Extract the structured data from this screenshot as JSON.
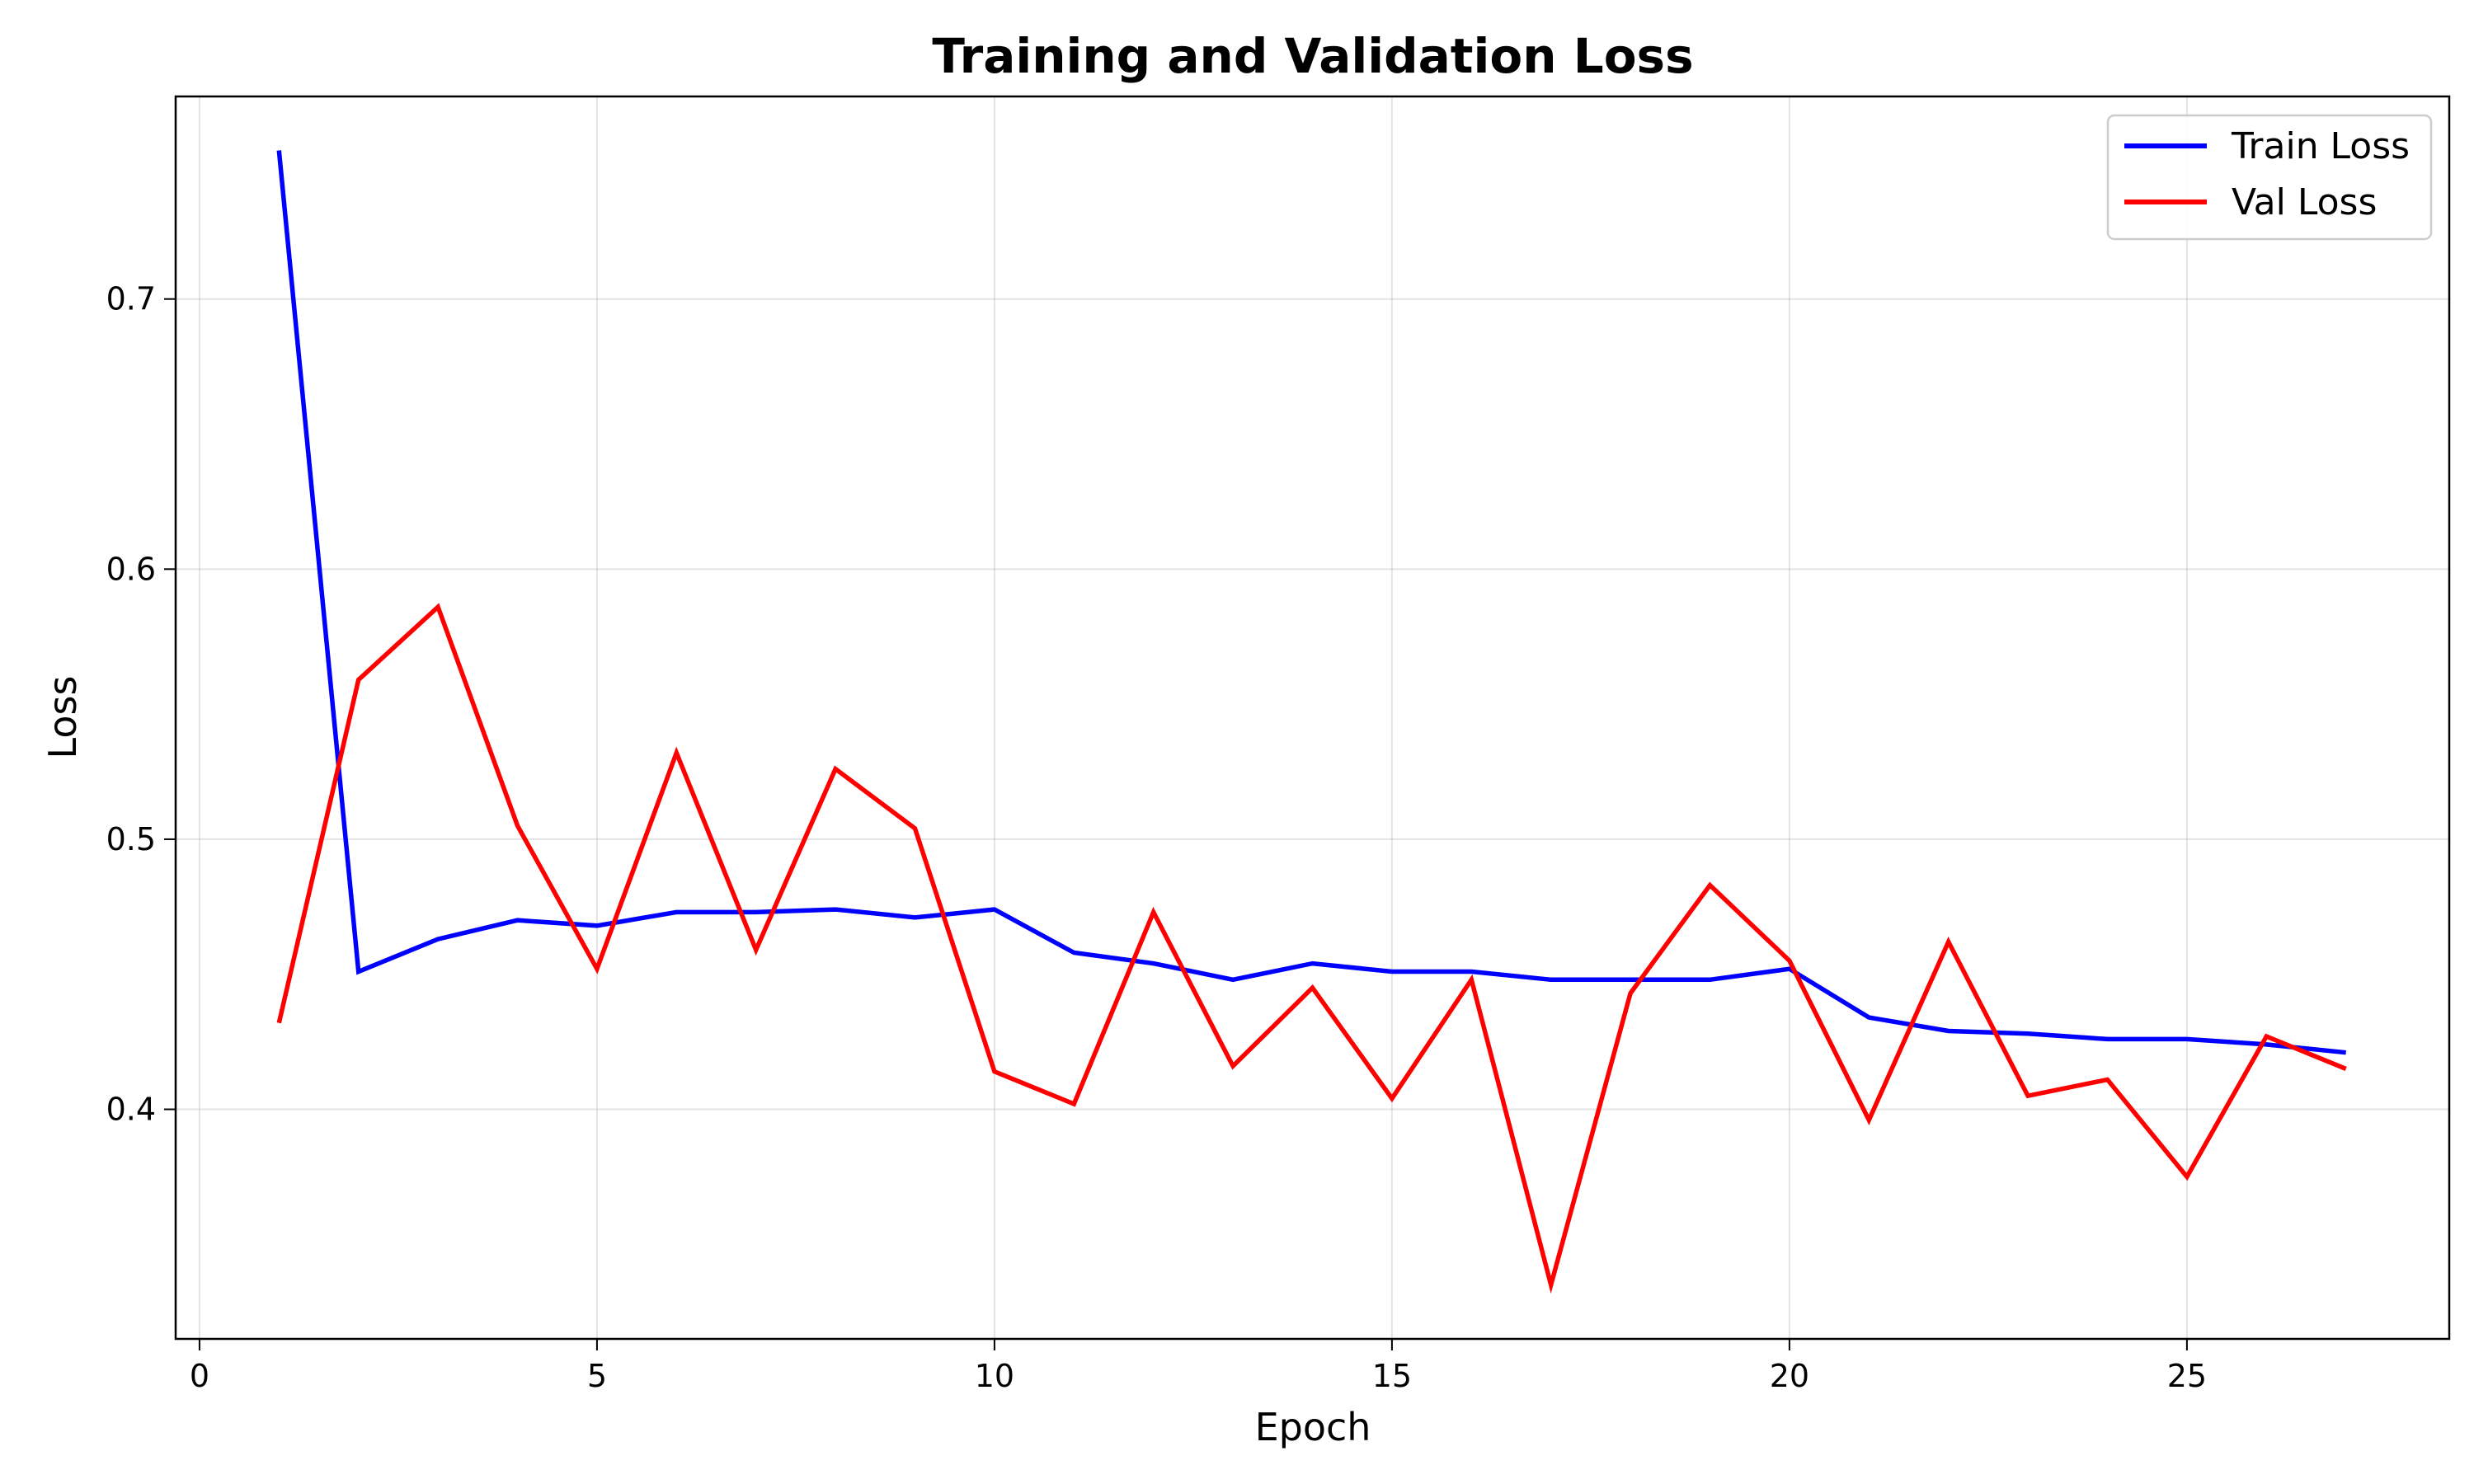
{
  "chart_data": {
    "type": "line",
    "title": "Training and Validation Loss",
    "xlabel": "Epoch",
    "ylabel": "Loss",
    "xlim": [
      -0.3,
      28.3
    ],
    "ylim": [
      0.315,
      0.775
    ],
    "xticks": [
      0,
      5,
      10,
      15,
      20,
      25
    ],
    "yticks": [
      0.4,
      0.5,
      0.6,
      0.7
    ],
    "xtick_labels": [
      "0",
      "5",
      "10",
      "15",
      "20",
      "25"
    ],
    "ytick_labels": [
      "0.4",
      "0.5",
      "0.6",
      "0.7"
    ],
    "grid": true,
    "legend_position": "top-right",
    "x": [
      1,
      2,
      3,
      4,
      5,
      6,
      7,
      8,
      9,
      10,
      11,
      12,
      13,
      14,
      15,
      16,
      17,
      18,
      19,
      20,
      21,
      22,
      23,
      24,
      25,
      26,
      27
    ],
    "series": [
      {
        "name": "Train Loss",
        "color": "#0000ff",
        "values": [
          0.755,
          0.451,
          0.463,
          0.47,
          0.468,
          0.473,
          0.473,
          0.474,
          0.471,
          0.474,
          0.458,
          0.454,
          0.448,
          0.454,
          0.451,
          0.451,
          0.448,
          0.448,
          0.448,
          0.452,
          0.434,
          0.429,
          0.428,
          0.426,
          0.426,
          0.424,
          0.421
        ]
      },
      {
        "name": "Val Loss",
        "color": "#ff0000",
        "values": [
          0.432,
          0.559,
          0.586,
          0.505,
          0.452,
          0.532,
          0.459,
          0.526,
          0.504,
          0.414,
          0.402,
          0.473,
          0.416,
          0.445,
          0.404,
          0.448,
          0.335,
          0.443,
          0.483,
          0.455,
          0.396,
          0.462,
          0.405,
          0.411,
          0.375,
          0.427,
          0.415
        ]
      }
    ]
  }
}
